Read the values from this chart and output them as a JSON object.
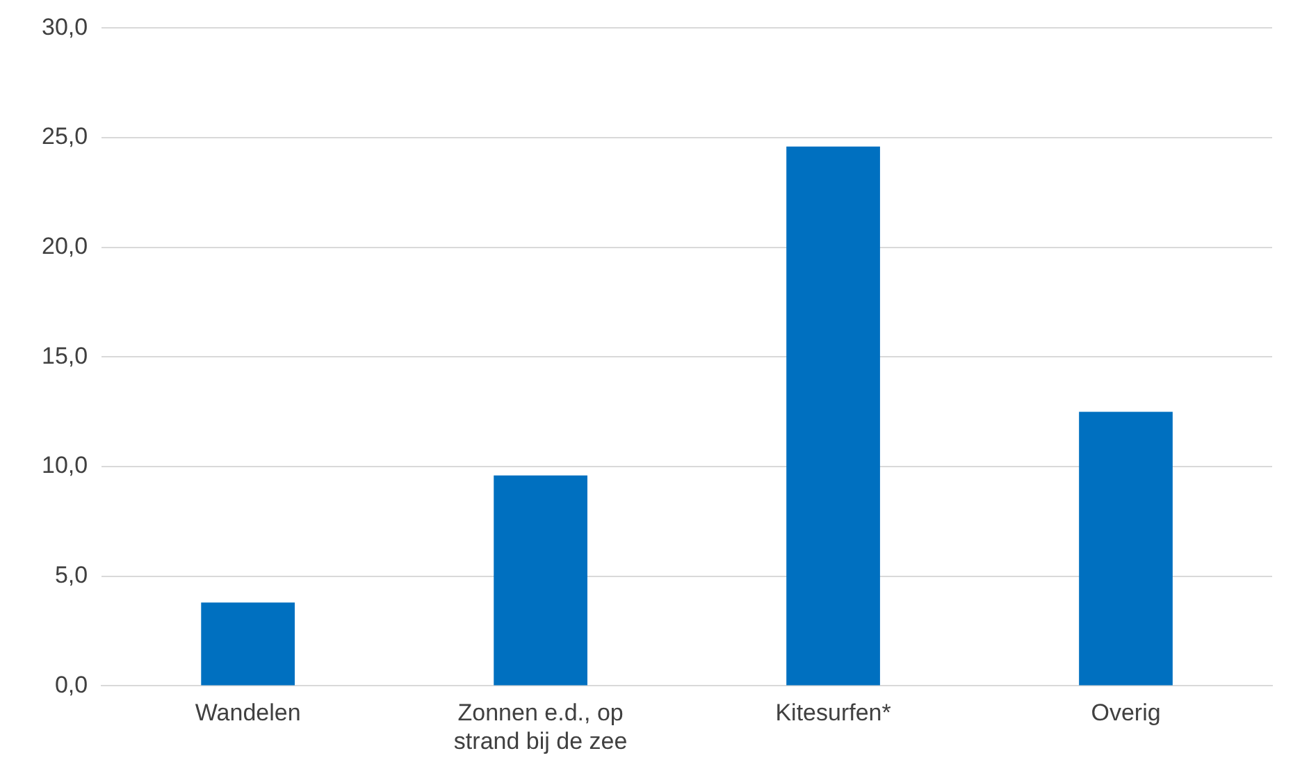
{
  "chart_data": {
    "type": "bar",
    "categories": [
      "Wandelen",
      "Zonnen e.d., op strand bij de zee",
      "Kitesurfen*",
      "Overig"
    ],
    "values": [
      3.8,
      9.6,
      24.6,
      12.5
    ],
    "color": "#0070c0",
    "ylim": [
      0,
      30
    ],
    "yticks": [
      {
        "value": 0,
        "label": "0,0"
      },
      {
        "value": 5,
        "label": "5,0"
      },
      {
        "value": 10,
        "label": "10,0"
      },
      {
        "value": 15,
        "label": "15,0"
      },
      {
        "value": 20,
        "label": "20,0"
      },
      {
        "value": 25,
        "label": "25,0"
      },
      {
        "value": 30,
        "label": "30,0"
      }
    ],
    "grid": "y",
    "legend": false
  }
}
